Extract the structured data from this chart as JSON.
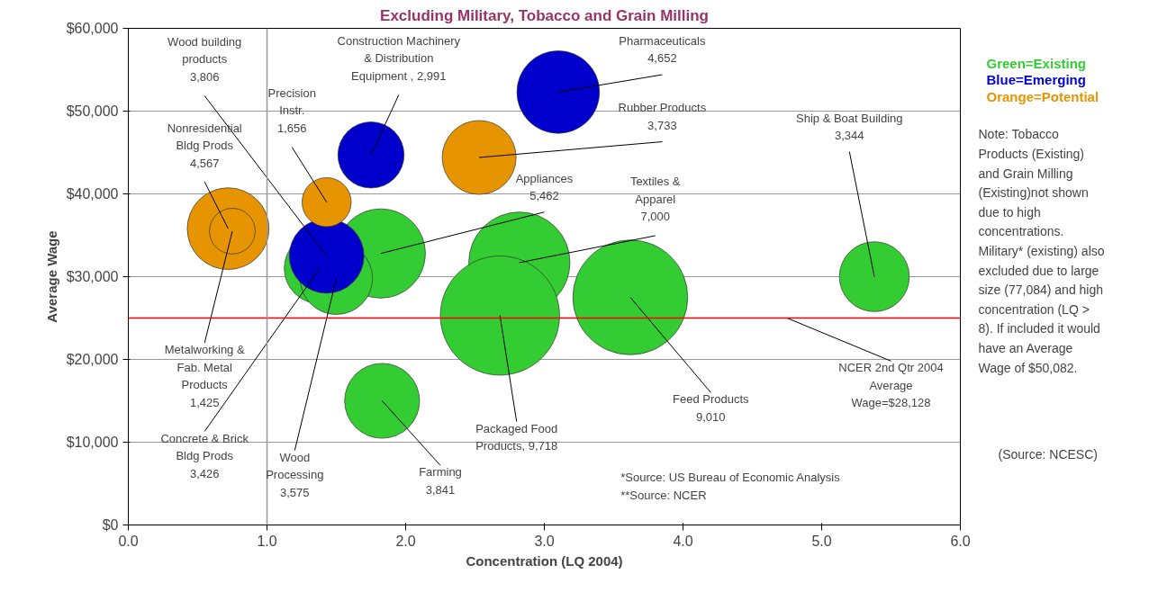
{
  "chart_data": {
    "type": "bubble",
    "title": "Excluding Military, Tobacco and Grain Milling",
    "xlabel": "Concentration (LQ 2004)",
    "ylabel": "Average Wage",
    "xlim": [
      0,
      6
    ],
    "xticks": [
      {
        "value": 0,
        "label": "0.0"
      },
      {
        "value": 1,
        "label": "1.0"
      },
      {
        "value": 2,
        "label": "2.0"
      },
      {
        "value": 3,
        "label": "3.0"
      },
      {
        "value": 4,
        "label": "4.0"
      },
      {
        "value": 5,
        "label": "5.0"
      },
      {
        "value": 6,
        "label": "6.0"
      }
    ],
    "ylim": [
      0,
      60000
    ],
    "yticks": [
      {
        "value": 0,
        "label": "$0"
      },
      {
        "value": 10000,
        "label": "$10,000"
      },
      {
        "value": 20000,
        "label": "$20,000"
      },
      {
        "value": 30000,
        "label": "$30,000"
      },
      {
        "value": 40000,
        "label": "$40,000"
      },
      {
        "value": 50000,
        "label": "$50,000"
      },
      {
        "value": 60000,
        "label": "$60,000"
      }
    ],
    "grid": "y",
    "series": [
      {
        "name": "Green=Existing",
        "color": "#33cc33",
        "x": [
          1.38,
          1.82,
          1.5,
          1.83,
          2.82,
          2.68,
          3.62,
          5.38
        ],
        "values": [
          31000,
          32800,
          29800,
          15000,
          31700,
          25300,
          27500,
          30000
        ],
        "sizes": [
          0.353,
          0.562,
          0.368,
          0.395,
          0.72,
          1,
          0.927,
          0.344
        ]
      },
      {
        "name": "Blue=Emerging",
        "color": "#0000cc",
        "x": [
          1.43,
          1.75,
          3.1
        ],
        "values": [
          32500,
          44700,
          52300
        ],
        "sizes": [
          0.392,
          0.308,
          0.479
        ]
      },
      {
        "name": "Orange=Potential",
        "color": "#e69500",
        "x": [
          0.72,
          0.75,
          1.43,
          2.53
        ],
        "values": [
          35800,
          35500,
          39000,
          44400
        ],
        "sizes": [
          0.47,
          0.147,
          0.17,
          0.384
        ]
      }
    ],
    "ref_lines": [
      {
        "axis": "y",
        "value": 25000,
        "color": "#ff0000"
      },
      {
        "axis": "x",
        "value": 1,
        "color": "#999999"
      }
    ],
    "annotations": [
      {
        "text": "Nonresidential\nBldg Prods\n4,567",
        "x": 0.72,
        "y": 35800
      },
      {
        "text": "Metalworking &\nFab. Metal\nProducts\n1,425",
        "x": 0.75,
        "y": 35500
      },
      {
        "text": "Wood building\nproducts\n3,806",
        "x": 1.43,
        "y": 32500
      },
      {
        "text": "Concrete & Brick\nBldg Prods\n3,426",
        "x": 1.38,
        "y": 31000
      },
      {
        "text": "Precision\nInstr.\n1,656",
        "x": 1.43,
        "y": 39000
      },
      {
        "text": "Construction Machinery\n& Distribution\nEquipment , 2,991",
        "x": 1.75,
        "y": 44700
      },
      {
        "text": "Appliances\n5,462",
        "x": 1.82,
        "y": 32800
      },
      {
        "text": "Wood\nProcessing\n3,575",
        "x": 1.5,
        "y": 29800
      },
      {
        "text": "Farming\n3,841",
        "x": 1.83,
        "y": 15000
      },
      {
        "text": "Pharmaceuticals\n4,652",
        "x": 3.1,
        "y": 52300
      },
      {
        "text": "Rubber Products\n3,733",
        "x": 2.53,
        "y": 44400
      },
      {
        "text": "Textiles &\nApparel\n7,000",
        "x": 2.82,
        "y": 31700
      },
      {
        "text": "Packaged Food\nProducts, 9,718",
        "x": 2.68,
        "y": 25300
      },
      {
        "text": "Feed Products\n9,010",
        "x": 3.62,
        "y": 27500
      },
      {
        "text": "Ship & Boat Building\n3,344",
        "x": 5.38,
        "y": 30000
      },
      {
        "text": "NCER 2nd Qtr 2004\nAverage\nWage=$28,128",
        "x": 4.75,
        "y": 25000
      },
      "*Source: US Bureau of Economic Analysis\n**Source: NCER",
      "Note: Tobacco\nProducts (Existing)\nand Grain Milling\n(Existing)not shown\ndue to high\nconcentrations.\nMilitary* (existing) also\nexcluded due to large\nsize (77,084) and high\nconcentration (LQ >\n8). If included it would\nhave an Average\nWage of $50,082.",
      "(Source: NCESC)"
    ]
  }
}
